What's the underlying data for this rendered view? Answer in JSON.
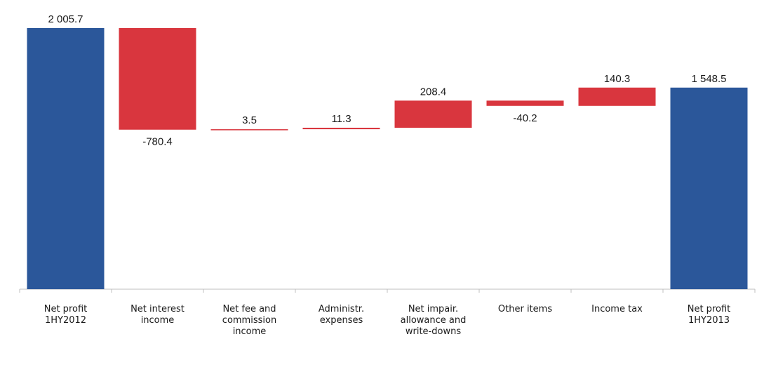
{
  "chart_data": {
    "type": "waterfall",
    "title": "",
    "xlabel": "",
    "ylabel": "",
    "categories": [
      [
        "Net profit",
        "1HY2012"
      ],
      [
        "Net interest",
        "income"
      ],
      [
        "Net fee and",
        "commission",
        "income"
      ],
      [
        "Administr.",
        "expenses"
      ],
      [
        "Net impair.",
        "allowance and",
        "write-downs"
      ],
      [
        "Other items"
      ],
      [
        "Income tax"
      ],
      [
        "Net profit",
        "1HY2013"
      ]
    ],
    "values": [
      2005.7,
      -780.4,
      3.5,
      11.3,
      208.4,
      -40.2,
      140.3,
      1548.5
    ],
    "labels": [
      "2 005.7",
      "-780.4",
      "3.5",
      "11.3",
      "208.4",
      "-40.2",
      "140.3",
      "1 548.5"
    ],
    "kinds": [
      "total",
      "delta",
      "delta",
      "delta",
      "delta",
      "delta",
      "delta",
      "total"
    ],
    "ylim": [
      0,
      2005.7
    ],
    "grid": false,
    "colors": {
      "total": "#2b579a",
      "delta": "#d9363e",
      "axis": "#bfbfbf"
    }
  }
}
